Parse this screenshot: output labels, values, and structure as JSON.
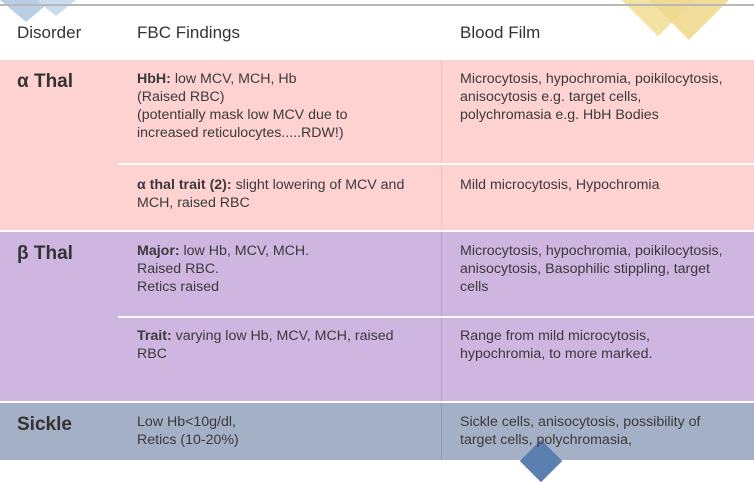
{
  "header": {
    "col_disorder": "Disorder",
    "col_fbc": "FBC Findings",
    "col_film": "Blood Film"
  },
  "alpha": {
    "name": "α Thal",
    "row1": {
      "fbc_bold": "HbH:",
      "fbc_line1": " low  MCV, MCH, Hb",
      "fbc_line2": "(Raised RBC)",
      "fbc_line3": "(potentially mask low MCV due to",
      "fbc_line4": "increased reticulocytes.....RDW!)",
      "film_line1": "Microcytosis, hypochromia, poikilocytosis,",
      "film_line2": "anisocytosis e.g. target cells,",
      "film_line3": "polychromasia e.g. HbH Bodies"
    },
    "row2": {
      "fbc_bold": "α  thal trait (2):",
      "fbc_line1": " slight lowering of MCV and",
      "fbc_line2": "MCH, raised RBC",
      "film_line1": "Mild microcytosis, Hypochromia"
    }
  },
  "beta": {
    "name": "β Thal",
    "row1": {
      "fbc_bold": "Major:",
      "fbc_line1": " low Hb, MCV, MCH.",
      "fbc_line2": "Raised RBC.",
      "fbc_line3": "Retics raised",
      "film_line1": "Microcytosis, hypochromia, poikilocytosis,",
      "film_line2": "anisocytosis, Basophilic stippling, target",
      "film_line3": "cells"
    },
    "row2": {
      "fbc_bold": "Trait:",
      "fbc_line1": " varying low Hb, MCV, MCH, raised",
      "fbc_line2": "RBC",
      "film_line1": "Range from mild microcytosis,",
      "film_line2": "hypochromia, to more marked."
    }
  },
  "sickle": {
    "name": "Sickle",
    "fbc_line1": "Low Hb<10g/dl,",
    "fbc_line2": "Retics (10-20%)",
    "film_line1": "Sickle cells, anisocytosis, possibility of",
    "film_line2": "target  cells, polychromasia,"
  }
}
